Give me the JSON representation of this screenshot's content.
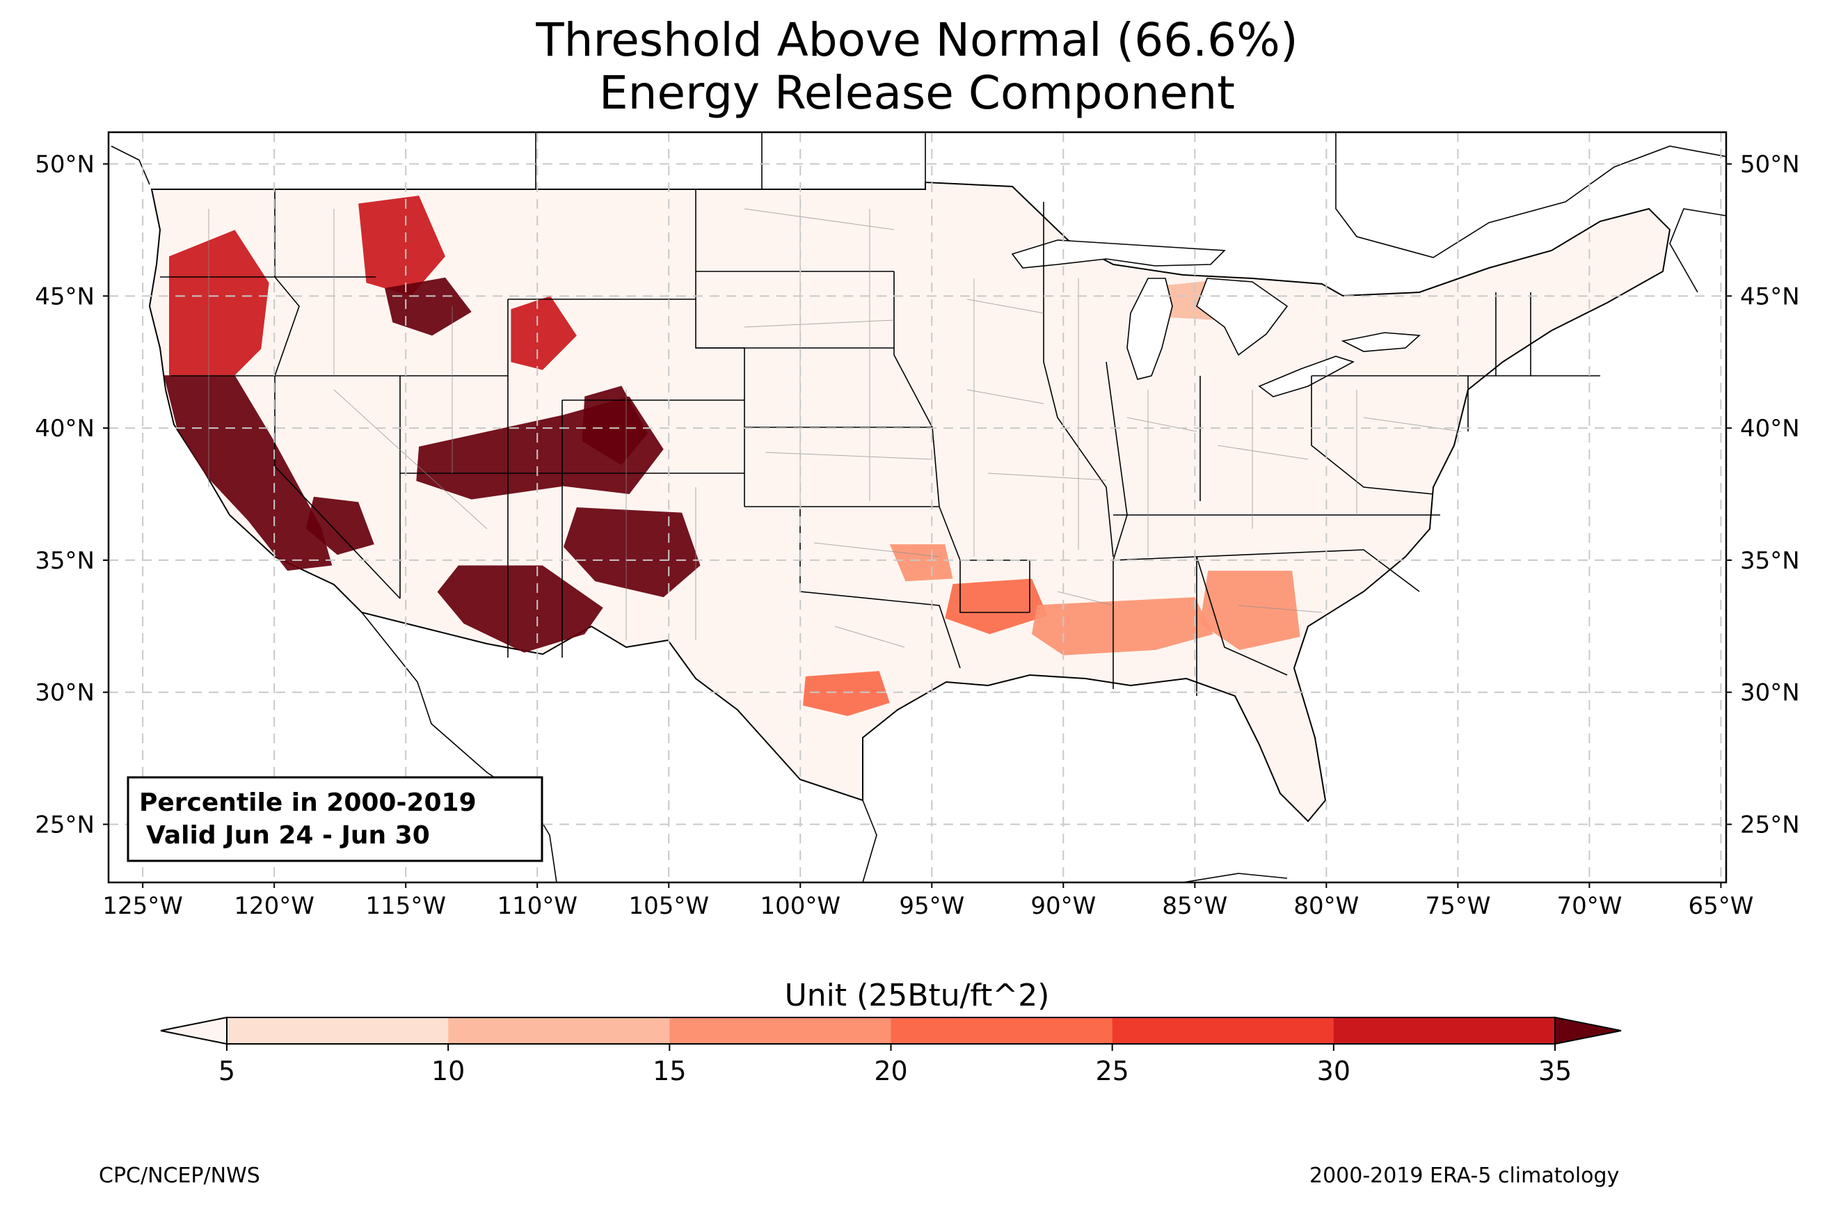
{
  "title": {
    "line1": "Threshold Above Normal (66.6%)",
    "line2": "Energy Release Component"
  },
  "map": {
    "lon_range": [
      -126.3,
      -64.8
    ],
    "lat_range": [
      22.8,
      51.2
    ],
    "lon_ticks": [
      {
        "value": -125,
        "label": "125°W"
      },
      {
        "value": -120,
        "label": "120°W"
      },
      {
        "value": -115,
        "label": "115°W"
      },
      {
        "value": -110,
        "label": "110°W"
      },
      {
        "value": -105,
        "label": "105°W"
      },
      {
        "value": -100,
        "label": "100°W"
      },
      {
        "value": -95,
        "label": "95°W"
      },
      {
        "value": -90,
        "label": "90°W"
      },
      {
        "value": -85,
        "label": "85°W"
      },
      {
        "value": -80,
        "label": "80°W"
      },
      {
        "value": -75,
        "label": "75°W"
      },
      {
        "value": -70,
        "label": "70°W"
      },
      {
        "value": -65,
        "label": "65°W"
      }
    ],
    "lat_ticks": [
      {
        "value": 25,
        "label": "25°N"
      },
      {
        "value": 30,
        "label": "30°N"
      },
      {
        "value": 35,
        "label": "35°N"
      },
      {
        "value": 40,
        "label": "40°N"
      },
      {
        "value": 45,
        "label": "45°N"
      },
      {
        "value": 50,
        "label": "50°N"
      }
    ],
    "grid": true,
    "info_box": {
      "line1": "Percentile in 2000-2019",
      "line2": "Valid Jun 24 - Jun 30"
    }
  },
  "colorbar": {
    "title": "Unit (25Btu/ft^2)",
    "levels": [
      5,
      10,
      15,
      20,
      25,
      30,
      35
    ],
    "level_labels": [
      "5",
      "10",
      "15",
      "20",
      "25",
      "30",
      "35"
    ],
    "colors": [
      "#fee0d2",
      "#fcbba1",
      "#fc9272",
      "#fb6a4a",
      "#ef3b2c",
      "#cb181d",
      "#a50f15"
    ],
    "under_color": "#fff5f0",
    "over_color": "#67000d"
  },
  "heat_regions": [
    {
      "name": "california-coast",
      "level": 7,
      "points": [
        [
          -124.2,
          42
        ],
        [
          -121.5,
          42
        ],
        [
          -120,
          39.5
        ],
        [
          -118.2,
          36.2
        ],
        [
          -117.8,
          34.8
        ],
        [
          -119.5,
          34.6
        ],
        [
          -121,
          36.5
        ],
        [
          -122.6,
          38.2
        ],
        [
          -123.7,
          40
        ]
      ]
    },
    {
      "name": "oregon-cascades",
      "level": 6,
      "points": [
        [
          -124,
          46.5
        ],
        [
          -121.5,
          47.5
        ],
        [
          -120.2,
          45.5
        ],
        [
          -120.5,
          43
        ],
        [
          -121.5,
          42
        ],
        [
          -124,
          42
        ]
      ]
    },
    {
      "name": "idaho-north",
      "level": 6,
      "points": [
        [
          -116.8,
          48.5
        ],
        [
          -114.5,
          48.8
        ],
        [
          -113.5,
          46.5
        ],
        [
          -114.8,
          45
        ],
        [
          -116.5,
          45.5
        ]
      ]
    },
    {
      "name": "idaho-central",
      "level": 7,
      "points": [
        [
          -115.8,
          45.3
        ],
        [
          -113.5,
          45.7
        ],
        [
          -112.5,
          44.4
        ],
        [
          -114,
          43.5
        ],
        [
          -115.5,
          44
        ]
      ]
    },
    {
      "name": "wyoming-west",
      "level": 6,
      "points": [
        [
          -111,
          44.5
        ],
        [
          -109.5,
          45
        ],
        [
          -108.5,
          43.5
        ],
        [
          -109.8,
          42.2
        ],
        [
          -111,
          42.5
        ]
      ]
    },
    {
      "name": "colorado-plateau",
      "level": 7,
      "points": [
        [
          -114.5,
          39.3
        ],
        [
          -109,
          40.5
        ],
        [
          -106.5,
          41.2
        ],
        [
          -105.2,
          39.2
        ],
        [
          -106.5,
          37.5
        ],
        [
          -109,
          37.8
        ],
        [
          -112.5,
          37.3
        ],
        [
          -114.6,
          38
        ]
      ]
    },
    {
      "name": "colorado-west",
      "level": 7,
      "points": [
        [
          -108.2,
          41.2
        ],
        [
          -106.8,
          41.6
        ],
        [
          -105.8,
          39.8
        ],
        [
          -106.8,
          38.6
        ],
        [
          -108.3,
          39.5
        ]
      ]
    },
    {
      "name": "new-mexico",
      "level": 7,
      "points": [
        [
          -108.5,
          37
        ],
        [
          -104.5,
          36.8
        ],
        [
          -103.8,
          34.8
        ],
        [
          -105.2,
          33.6
        ],
        [
          -107.8,
          34.2
        ],
        [
          -109,
          35.5
        ]
      ]
    },
    {
      "name": "arizona-south",
      "level": 7,
      "points": [
        [
          -113,
          34.8
        ],
        [
          -109.8,
          34.8
        ],
        [
          -107.5,
          33.2
        ],
        [
          -108.2,
          32.2
        ],
        [
          -110.5,
          31.5
        ],
        [
          -112.8,
          32.6
        ],
        [
          -113.8,
          33.8
        ]
      ]
    },
    {
      "name": "nevada-south",
      "level": 7,
      "points": [
        [
          -118.5,
          37.4
        ],
        [
          -116.8,
          37.2
        ],
        [
          -116.2,
          35.6
        ],
        [
          -117.6,
          35.2
        ],
        [
          -118.8,
          36.2
        ]
      ]
    },
    {
      "name": "arkansas-south",
      "level": 4,
      "points": [
        [
          -94.2,
          34.1
        ],
        [
          -91.2,
          34.3
        ],
        [
          -90.6,
          32.9
        ],
        [
          -92.8,
          32.2
        ],
        [
          -94.5,
          32.8
        ]
      ]
    },
    {
      "name": "mississippi-alabama",
      "level": 3,
      "points": [
        [
          -91,
          33.3
        ],
        [
          -85,
          33.6
        ],
        [
          -84.3,
          32.2
        ],
        [
          -86.5,
          31.6
        ],
        [
          -90,
          31.4
        ],
        [
          -91.2,
          32.2
        ]
      ]
    },
    {
      "name": "oklahoma-east",
      "level": 3,
      "points": [
        [
          -96.6,
          35.6
        ],
        [
          -94.5,
          35.6
        ],
        [
          -94.2,
          34.3
        ],
        [
          -96,
          34.2
        ]
      ]
    },
    {
      "name": "texas-south",
      "level": 4,
      "points": [
        [
          -99.8,
          30.6
        ],
        [
          -97,
          30.8
        ],
        [
          -96.6,
          29.6
        ],
        [
          -98.2,
          29.1
        ],
        [
          -99.9,
          29.5
        ]
      ]
    },
    {
      "name": "georgia",
      "level": 3,
      "points": [
        [
          -84.5,
          34.6
        ],
        [
          -81.3,
          34.6
        ],
        [
          -81,
          32.1
        ],
        [
          -83.3,
          31.6
        ],
        [
          -84.8,
          32.6
        ]
      ]
    },
    {
      "name": "michigan",
      "level": 2,
      "points": [
        [
          -86.2,
          45.4
        ],
        [
          -84.2,
          45.6
        ],
        [
          -84.3,
          44.1
        ],
        [
          -86.2,
          44.2
        ]
      ]
    }
  ],
  "footer": {
    "left": "CPC/NCEP/NWS",
    "right": "2000-2019 ERA-5 climatology"
  }
}
